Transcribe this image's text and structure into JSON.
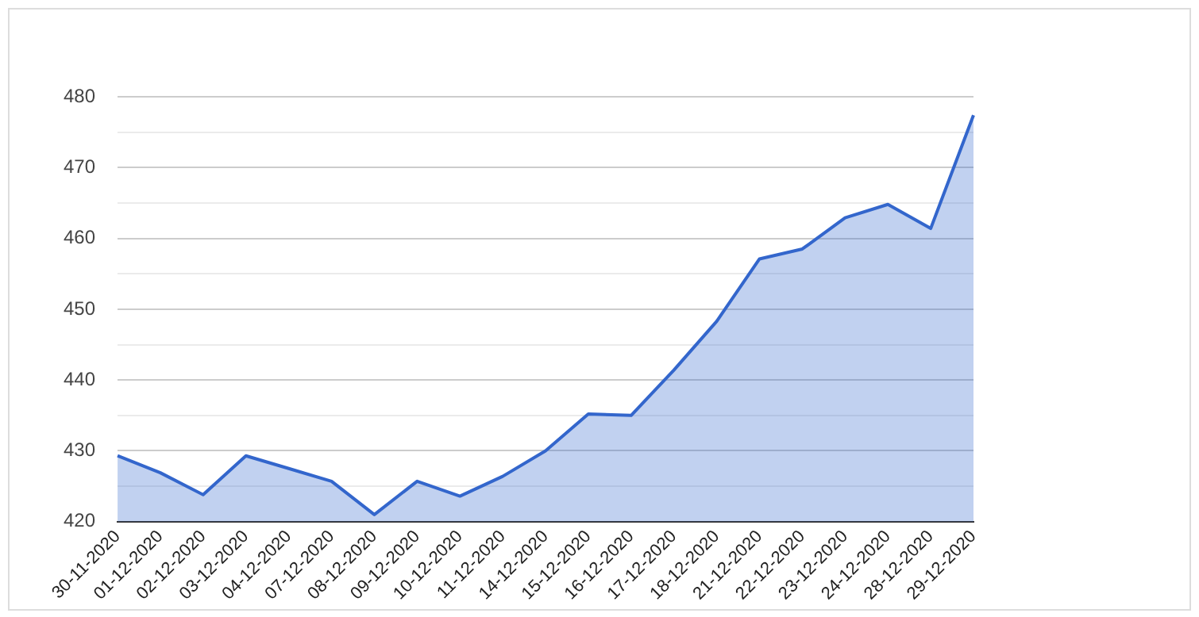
{
  "chart_data": {
    "type": "area",
    "categories": [
      "30-11-2020",
      "01-12-2020",
      "02-12-2020",
      "03-12-2020",
      "04-12-2020",
      "07-12-2020",
      "08-12-2020",
      "09-12-2020",
      "10-12-2020",
      "11-12-2020",
      "14-12-2020",
      "15-12-2020",
      "16-12-2020",
      "17-12-2020",
      "18-12-2020",
      "21-12-2020",
      "22-12-2020",
      "23-12-2020",
      "24-12-2020",
      "28-12-2020",
      "29-12-2020"
    ],
    "series": [
      {
        "color": "#3366cc",
        "values": [
          429.3,
          426.9,
          423.8,
          429.3,
          427.5,
          425.7,
          421.0,
          425.7,
          423.6,
          426.4,
          430.0,
          435.2,
          435.0,
          441.4,
          448.3,
          457.1,
          458.5,
          462.9,
          464.8,
          461.4,
          477.4
        ]
      }
    ],
    "ylim": [
      420,
      480
    ],
    "yticks": [
      420,
      {
        "value": 425,
        "label": null
      },
      430,
      {
        "value": 435,
        "label": null
      },
      440,
      {
        "value": 445,
        "label": null
      },
      450,
      {
        "value": 455,
        "label": null
      },
      460,
      {
        "value": 465,
        "label": null
      },
      470,
      {
        "value": 475,
        "label": null
      },
      480
    ],
    "grid": "y",
    "legend": false
  }
}
